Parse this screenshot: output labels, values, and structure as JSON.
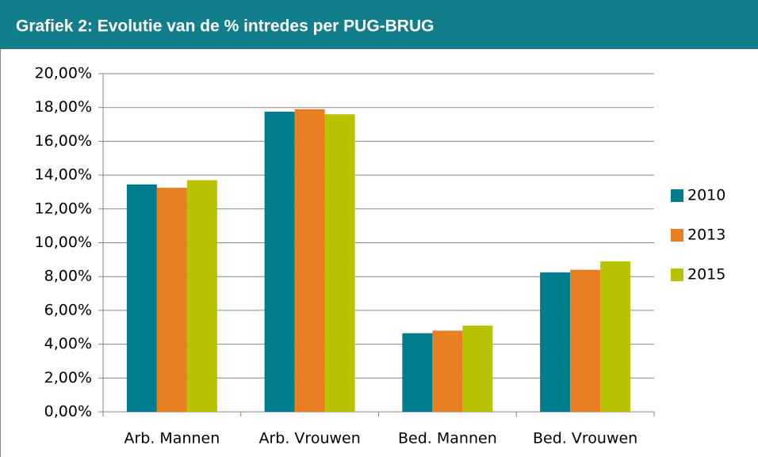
{
  "chart_data": {
    "type": "bar",
    "title": "Grafiek 2: Evolutie van de % intredes per PUG-BRUG",
    "categories": [
      "Arb. Mannen",
      "Arb. Vrouwen",
      "Bed. Mannen",
      "Bed. Vrouwen"
    ],
    "series": [
      {
        "name": "2010",
        "color": "#007d8c",
        "values": [
          13.45,
          17.75,
          4.65,
          8.25
        ]
      },
      {
        "name": "2013",
        "color": "#e87e22",
        "values": [
          13.25,
          17.9,
          4.8,
          8.4
        ]
      },
      {
        "name": "2015",
        "color": "#b7c200",
        "values": [
          13.7,
          17.6,
          5.1,
          8.9
        ]
      }
    ],
    "ylim": [
      0,
      20
    ],
    "yticks": [
      {
        "value": 0,
        "label": "0,00%"
      },
      {
        "value": 2,
        "label": "2,00%"
      },
      {
        "value": 4,
        "label": "4,00%"
      },
      {
        "value": 6,
        "label": "6,00%"
      },
      {
        "value": 8,
        "label": "8,00%"
      },
      {
        "value": 10,
        "label": "10,00%"
      },
      {
        "value": 12,
        "label": "12,00%"
      },
      {
        "value": 14,
        "label": "14,00%"
      },
      {
        "value": 16,
        "label": "16,00%"
      },
      {
        "value": 18,
        "label": "18,00%"
      },
      {
        "value": 20,
        "label": "20,00%"
      }
    ],
    "grid": true,
    "legend": "right"
  }
}
